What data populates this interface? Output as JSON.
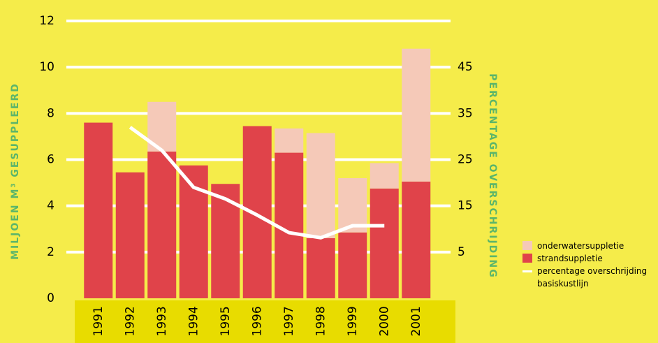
{
  "chart_data": {
    "type": "bar",
    "y_label": "MILJOEN M³ GESUPPLEERD",
    "y2_label": "PERCENTAGE OVERSCHRIJDING",
    "categories": [
      "1991",
      "1992",
      "1993",
      "1994",
      "1995",
      "1996",
      "1997",
      "1998",
      "1999",
      "2000",
      "2001"
    ],
    "series": [
      {
        "name": "strandsuppletie",
        "color": "#e0434a",
        "type": "bar",
        "values": [
          7.6,
          5.45,
          6.35,
          5.75,
          4.95,
          7.45,
          6.3,
          2.6,
          2.85,
          4.75,
          5.05
        ]
      },
      {
        "name": "onderwatersuppletie",
        "color": "#f5c9b8",
        "type": "bar",
        "values": [
          0,
          0,
          2.15,
          0,
          0,
          0,
          1.05,
          4.55,
          2.35,
          1.1,
          5.75
        ]
      },
      {
        "name": "percentage overschrijding basiskustlijn",
        "color": "#ffffff",
        "type": "line",
        "axis": "y2",
        "values": [
          null,
          32,
          27,
          19,
          16.5,
          13,
          9.2,
          8.1,
          10.7,
          10.7,
          null
        ]
      }
    ],
    "ylim": [
      0,
      12
    ],
    "yticks": [
      0,
      2,
      4,
      6,
      8,
      10,
      12
    ],
    "y2lim": [
      -5,
      55
    ],
    "y2ticks": [
      5,
      15,
      25,
      35,
      45
    ],
    "grid": true,
    "stacked": true,
    "legend": "lower right"
  }
}
